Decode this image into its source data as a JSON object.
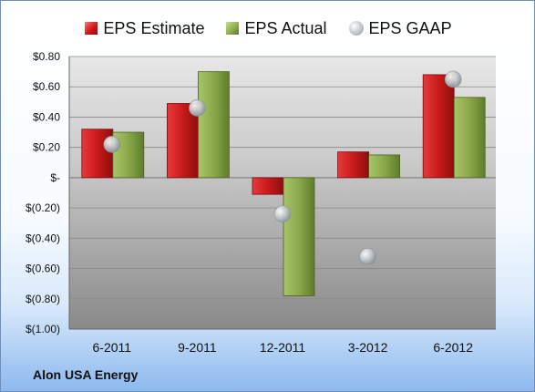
{
  "chart_data": {
    "type": "bar",
    "company": "Alon USA Energy",
    "categories": [
      "6-2011",
      "9-2011",
      "12-2011",
      "3-2012",
      "6-2012"
    ],
    "series": [
      {
        "name": "EPS Estimate",
        "kind": "bar",
        "color": "#c81a1a",
        "values": [
          0.32,
          0.49,
          -0.11,
          0.17,
          0.68
        ]
      },
      {
        "name": "EPS Actual",
        "kind": "bar",
        "color": "#8aa84a",
        "values": [
          0.3,
          0.7,
          -0.78,
          0.15,
          0.53
        ]
      },
      {
        "name": "EPS GAAP",
        "kind": "point",
        "color": "#b8bec5",
        "values": [
          0.22,
          0.46,
          -0.24,
          -0.52,
          0.65
        ]
      }
    ],
    "y_ticks": [
      0.8,
      0.6,
      0.4,
      0.2,
      0,
      -0.2,
      -0.4,
      -0.6,
      -0.8,
      -1.0
    ],
    "y_tick_labels": [
      "$0.80",
      "$0.60",
      "$0.40",
      "$0.20",
      "$-",
      "$(0.20)",
      "$(0.40)",
      "$(0.60)",
      "$(0.80)",
      "$(1.00)"
    ],
    "ylim": [
      -1.0,
      0.8
    ],
    "grid": true,
    "legend_position": "top"
  }
}
